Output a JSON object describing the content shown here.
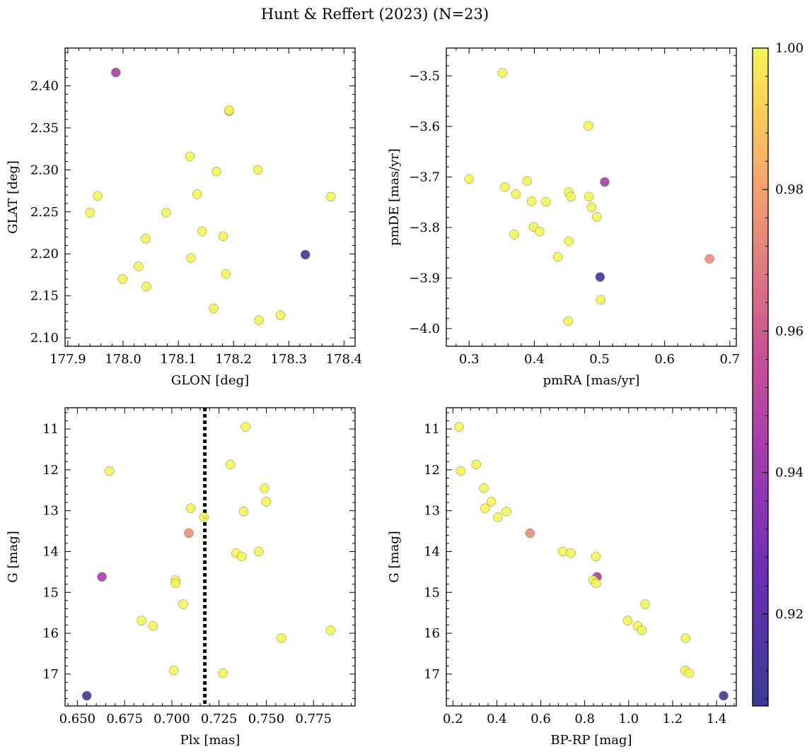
{
  "title": "Hunt & Reffert (2023) (N=23)",
  "colorbar": {
    "vmin": 0.907,
    "vmax": 1.0,
    "ticks": [
      0.92,
      0.94,
      0.96,
      0.98,
      1.0
    ],
    "tick_labels": [
      "0.92",
      "0.94",
      "0.96",
      "0.98",
      "1.00"
    ],
    "colormap": "plasma"
  },
  "chart_data": [
    {
      "type": "scatter",
      "title": "",
      "xlabel": "GLON [deg]",
      "ylabel": "GLAT [deg]",
      "xlim": [
        177.895,
        178.42
      ],
      "ylim": [
        2.09,
        2.445
      ],
      "xticks": [
        177.9,
        178.0,
        178.1,
        178.2,
        178.3,
        178.4
      ],
      "xtick_labels": [
        "177.9",
        "178.0",
        "178.1",
        "178.2",
        "178.3",
        "178.4"
      ],
      "yticks": [
        2.1,
        2.15,
        2.2,
        2.25,
        2.3,
        2.35,
        2.4
      ],
      "ytick_labels": [
        "2.10",
        "2.15",
        "2.20",
        "2.25",
        "2.30",
        "2.35",
        "2.40"
      ],
      "x": [
        177.987,
        178.192,
        178.121,
        178.169,
        178.244,
        177.954,
        178.376,
        177.94,
        178.078,
        178.134,
        178.143,
        178.041,
        178.181,
        178.33,
        178.123,
        178.028,
        178.186,
        177.999,
        178.042,
        178.164,
        178.285,
        178.246,
        178.192
      ],
      "y": [
        2.416,
        2.37,
        2.316,
        2.298,
        2.3,
        2.269,
        2.268,
        2.249,
        2.249,
        2.271,
        2.227,
        2.218,
        2.221,
        2.199,
        2.195,
        2.185,
        2.176,
        2.17,
        2.161,
        2.135,
        2.127,
        2.121,
        2.371
      ],
      "color": [
        0.945,
        0.985,
        1.0,
        1.0,
        1.0,
        1.0,
        1.0,
        1.0,
        1.0,
        1.0,
        1.0,
        1.0,
        1.0,
        0.907,
        1.0,
        1.0,
        1.0,
        1.0,
        1.0,
        1.0,
        1.0,
        1.0,
        1.0
      ]
    },
    {
      "type": "scatter",
      "title": "",
      "xlabel": "pmRA [mas/yr]",
      "ylabel": "pmDE [mas/yr]",
      "xlim": [
        0.265,
        0.71
      ],
      "ylim": [
        -4.035,
        -3.445
      ],
      "xticks": [
        0.3,
        0.4,
        0.5,
        0.6,
        0.7
      ],
      "xtick_labels": [
        "0.3",
        "0.4",
        "0.5",
        "0.6",
        "0.7"
      ],
      "yticks": [
        -4.0,
        -3.9,
        -3.8,
        -3.7,
        -3.6,
        -3.5
      ],
      "ytick_labels": [
        "−4.0",
        "−3.9",
        "−3.8",
        "−3.7",
        "−3.6",
        "−3.5"
      ],
      "x": [
        0.351,
        0.483,
        0.3,
        0.389,
        0.355,
        0.372,
        0.396,
        0.418,
        0.453,
        0.456,
        0.484,
        0.488,
        0.496,
        0.399,
        0.408,
        0.369,
        0.453,
        0.436,
        0.669,
        0.501,
        0.502,
        0.452,
        0.508
      ],
      "y": [
        -3.494,
        -3.599,
        -3.704,
        -3.708,
        -3.72,
        -3.734,
        -3.748,
        -3.749,
        -3.73,
        -3.739,
        -3.739,
        -3.76,
        -3.779,
        -3.799,
        -3.808,
        -3.814,
        -3.827,
        -3.858,
        -3.862,
        -3.898,
        -3.943,
        -3.985,
        -3.71
      ],
      "color": [
        1.0,
        1.0,
        1.0,
        1.0,
        1.0,
        1.0,
        1.0,
        1.0,
        1.0,
        1.0,
        1.0,
        1.0,
        1.0,
        1.0,
        1.0,
        1.0,
        1.0,
        1.0,
        0.975,
        0.907,
        1.0,
        1.0,
        0.945
      ]
    },
    {
      "type": "scatter",
      "title": "",
      "xlabel": "Plx [mas]",
      "ylabel": "G [mag]",
      "xlim": [
        0.6435,
        0.797
      ],
      "ylim": [
        17.78,
        10.48
      ],
      "y_inverted": true,
      "xticks": [
        0.65,
        0.675,
        0.7,
        0.725,
        0.75,
        0.775
      ],
      "xtick_labels": [
        "0.650",
        "0.675",
        "0.700",
        "0.725",
        "0.750",
        "0.775"
      ],
      "yticks": [
        11,
        12,
        13,
        14,
        15,
        16,
        17
      ],
      "ytick_labels": [
        "11",
        "12",
        "13",
        "14",
        "15",
        "16",
        "17"
      ],
      "vline": 0.7175,
      "x": [
        0.739,
        0.667,
        0.731,
        0.749,
        0.75,
        0.71,
        0.738,
        0.717,
        0.709,
        0.734,
        0.746,
        0.737,
        0.663,
        0.702,
        0.702,
        0.706,
        0.684,
        0.69,
        0.784,
        0.758,
        0.701,
        0.727,
        0.655
      ],
      "y": [
        10.95,
        12.03,
        11.87,
        12.45,
        12.78,
        12.94,
        13.02,
        13.16,
        13.55,
        14.04,
        14.0,
        14.12,
        14.62,
        14.7,
        14.78,
        15.29,
        15.69,
        15.82,
        15.93,
        16.12,
        16.91,
        16.98,
        17.53
      ],
      "color": [
        1.0,
        1.0,
        1.0,
        1.0,
        1.0,
        1.0,
        1.0,
        1.0,
        0.975,
        1.0,
        1.0,
        1.0,
        0.945,
        1.0,
        1.0,
        1.0,
        1.0,
        1.0,
        1.0,
        1.0,
        1.0,
        1.0,
        0.907
      ]
    },
    {
      "type": "scatter",
      "title": "",
      "xlabel": "BP-RP [mag]",
      "ylabel": "G [mag]",
      "xlim": [
        0.17,
        1.49
      ],
      "ylim": [
        17.78,
        10.48
      ],
      "y_inverted": true,
      "xticks": [
        0.2,
        0.4,
        0.6,
        0.8,
        1.0,
        1.2,
        1.4
      ],
      "xtick_labels": [
        "0.2",
        "0.4",
        "0.6",
        "0.8",
        "1.0",
        "1.2",
        "1.4"
      ],
      "yticks": [
        11,
        12,
        13,
        14,
        15,
        16,
        17
      ],
      "ytick_labels": [
        "11",
        "12",
        "13",
        "14",
        "15",
        "16",
        "17"
      ],
      "x": [
        0.228,
        0.235,
        0.306,
        0.341,
        0.375,
        0.346,
        0.444,
        0.405,
        0.551,
        0.7,
        0.737,
        0.851,
        0.856,
        0.838,
        0.852,
        1.075,
        0.996,
        1.041,
        1.06,
        1.259,
        1.257,
        1.275,
        1.432
      ],
      "y": [
        10.95,
        12.03,
        11.87,
        12.45,
        12.78,
        12.94,
        13.02,
        13.16,
        13.55,
        14.0,
        14.04,
        14.12,
        14.62,
        14.7,
        14.78,
        15.29,
        15.69,
        15.82,
        15.93,
        16.12,
        16.91,
        16.98,
        17.53
      ],
      "color": [
        1.0,
        1.0,
        1.0,
        1.0,
        1.0,
        1.0,
        1.0,
        1.0,
        0.975,
        1.0,
        1.0,
        1.0,
        0.945,
        1.0,
        1.0,
        1.0,
        1.0,
        1.0,
        1.0,
        1.0,
        1.0,
        1.0,
        0.907
      ]
    }
  ]
}
